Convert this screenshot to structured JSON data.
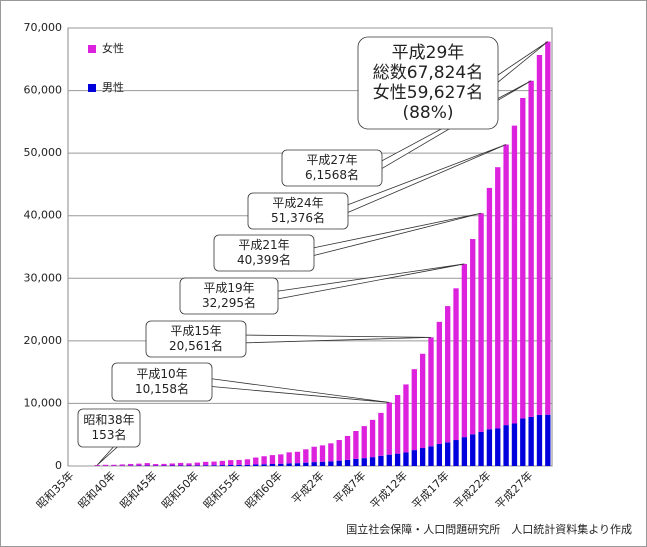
{
  "chart_data": {
    "type": "bar",
    "stacked": true,
    "categories": [
      "昭和35年",
      null,
      null,
      null,
      null,
      "昭和40年",
      null,
      null,
      null,
      null,
      "昭和45年",
      null,
      null,
      null,
      null,
      "昭和50年",
      null,
      null,
      null,
      null,
      "昭和55年",
      null,
      null,
      null,
      null,
      "昭和60年",
      null,
      null,
      null,
      null,
      "平成2年",
      null,
      null,
      null,
      null,
      "平成7年",
      null,
      null,
      null,
      null,
      "平成12年",
      null,
      null,
      null,
      null,
      "平成17年",
      null,
      null,
      null,
      null,
      "平成22年",
      null,
      null,
      null,
      null,
      "平成27年",
      null,
      null
    ],
    "series": [
      {
        "name": "男性",
        "color": "#0000dd",
        "values": [
          null,
          null,
          null,
          20,
          28,
          36,
          43,
          53,
          60,
          70,
          62,
          68,
          78,
          90,
          79,
          102,
          120,
          124,
          143,
          162,
          174,
          190,
          245,
          279,
          323,
          359,
          422,
          454,
          533,
          623,
          680,
          744,
          852,
          978,
          1136,
          1255,
          1417,
          1631,
          1812,
          1973,
          2158,
          2541,
          2875,
          3159,
          3523,
          3779,
          4150,
          4613,
          5063,
          5447,
          5869,
          5994,
          6534,
          6791,
          7586,
          7840,
          8167,
          8197
        ]
      },
      {
        "name": "女性",
        "color": "#dd22dd",
        "values": [
          null,
          null,
          null,
          133,
          163,
          162,
          209,
          274,
          315,
          395,
          248,
          271,
          327,
          405,
          348,
          446,
          546,
          581,
          672,
          775,
          794,
          882,
          1109,
          1282,
          1417,
          1500,
          1761,
          1817,
          2135,
          2455,
          2618,
          2881,
          3300,
          3824,
          4457,
          5123,
          5956,
          6860,
          8346,
          9373,
          10878,
          12934,
          15059,
          17402,
          19515,
          21775,
          24245,
          27682,
          31213,
          34952,
          38580,
          41762,
          44842,
          47606,
          51234,
          53728,
          57525,
          59627
        ]
      }
    ],
    "ylim": [
      0,
      70000
    ],
    "yticks": [
      0,
      {
        "value": 10000,
        "label": "10,000"
      },
      {
        "value": 20000,
        "label": "20,000"
      },
      {
        "value": 30000,
        "label": "30,000"
      },
      {
        "value": 40000,
        "label": "40,000"
      },
      {
        "value": 50000,
        "label": "50,000"
      },
      {
        "value": 60000,
        "label": "60,000"
      },
      {
        "value": 70000,
        "label": "70,000"
      }
    ],
    "grid": true,
    "legend": "upper left",
    "annotations": [
      {
        "lines": [
          "昭和38年",
          "153名"
        ]
      },
      {
        "lines": [
          "平成10年",
          "10,158名"
        ]
      },
      {
        "lines": [
          "平成15年",
          "20,561名"
        ]
      },
      {
        "lines": [
          "平成19年",
          "32,295名"
        ]
      },
      {
        "lines": [
          "平成21年",
          "40,399名"
        ]
      },
      {
        "lines": [
          "平成24年",
          "51,376名"
        ]
      },
      {
        "lines": [
          "平成27年",
          "6,1568名"
        ]
      },
      {
        "lines": [
          "平成29年",
          "総数67,824名",
          "女性59,627名",
          "(88%)"
        ]
      }
    ],
    "source": "国立社会保障・人口問題研究所　人口統計資料集より作成"
  }
}
